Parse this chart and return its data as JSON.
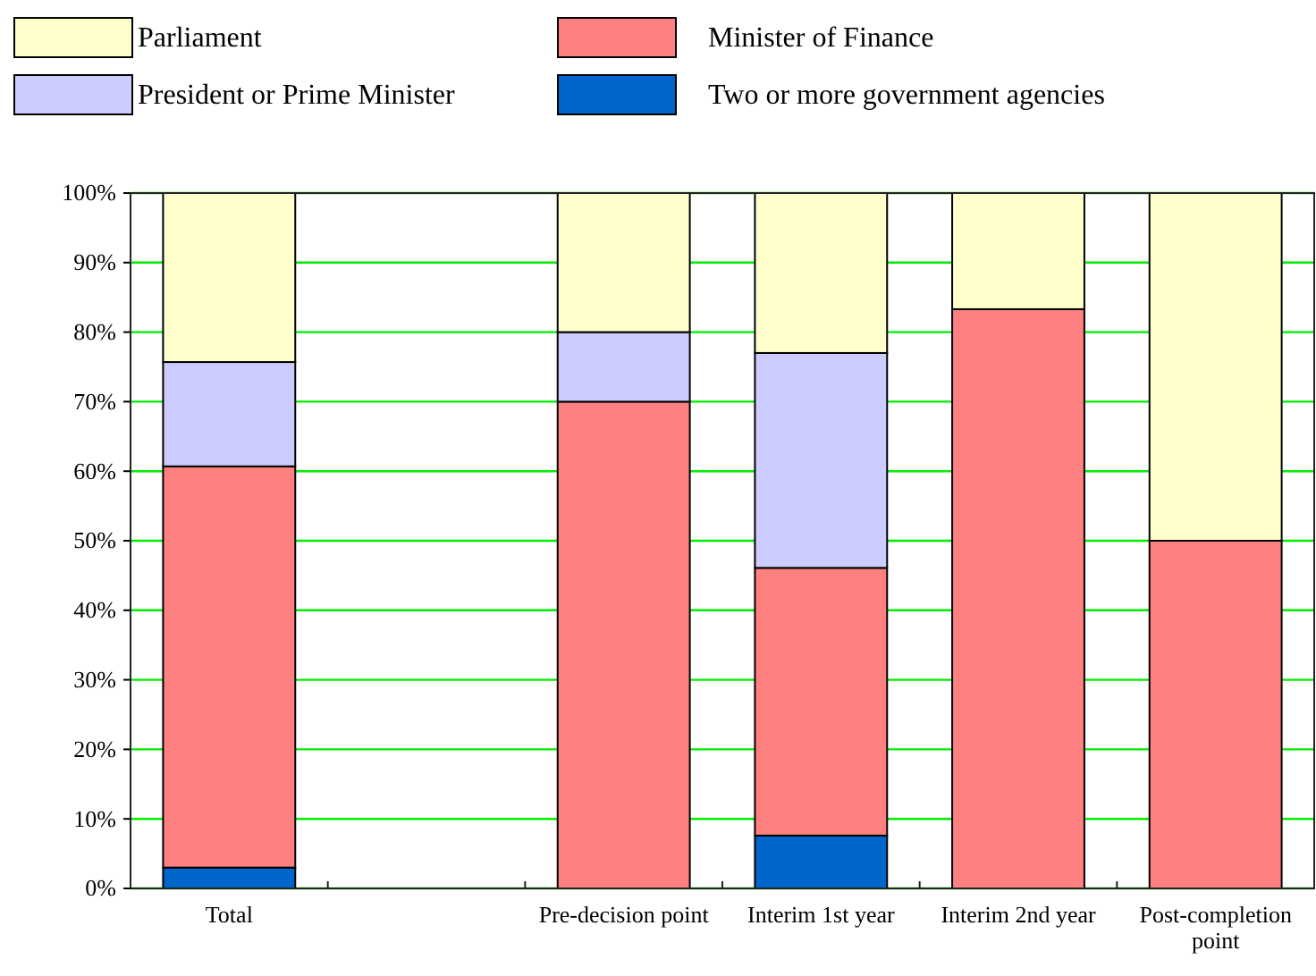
{
  "chart_data": {
    "type": "bar",
    "stacked": true,
    "categories": [
      "Total",
      null,
      "Pre-decision point",
      "Interim 1st year",
      "Interim 2nd year",
      "Post-completion point"
    ],
    "series": [
      {
        "name": "Two or more government agencies",
        "color": "#0066cc",
        "values": [
          3,
          null,
          0,
          7.6,
          0,
          0
        ]
      },
      {
        "name": "Minister of Finance",
        "color": "#ff8080",
        "values": [
          57.7,
          null,
          70,
          38.5,
          83.3,
          50
        ]
      },
      {
        "name": "President or Prime Minister",
        "color": "#ccccff",
        "values": [
          15,
          null,
          10,
          30.9,
          0,
          0
        ]
      },
      {
        "name": "Parliament",
        "color": "#ffffcc",
        "values": [
          24.3,
          null,
          20,
          23,
          16.7,
          50
        ]
      }
    ],
    "ylim": [
      0,
      100
    ],
    "yticks": [
      {
        "value": 0,
        "label": "0%"
      },
      {
        "value": 10,
        "label": "10%"
      },
      {
        "value": 20,
        "label": "20%"
      },
      {
        "value": 30,
        "label": "30%"
      },
      {
        "value": 40,
        "label": "40%"
      },
      {
        "value": 50,
        "label": "50%"
      },
      {
        "value": 60,
        "label": "60%"
      },
      {
        "value": 70,
        "label": "70%"
      },
      {
        "value": 80,
        "label": "80%"
      },
      {
        "value": 90,
        "label": "90%"
      },
      {
        "value": 100,
        "label": "100%"
      }
    ],
    "grid": "y",
    "legend": "top"
  }
}
